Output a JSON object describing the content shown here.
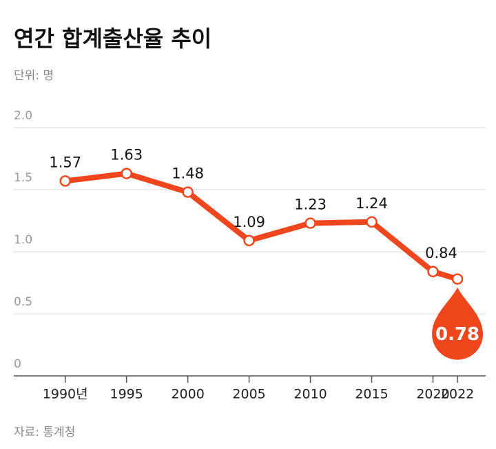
{
  "chart_data": {
    "type": "line",
    "title": "연간 합계출산율 추이",
    "subtitle": "단위: 명",
    "source": "자료: 통계청",
    "x": [
      1990,
      1995,
      2000,
      2005,
      2010,
      2015,
      2020,
      2022
    ],
    "values": [
      1.57,
      1.63,
      1.48,
      1.09,
      1.23,
      1.24,
      0.84,
      0.78
    ],
    "color": "#f0461e",
    "xlim": [
      1985.8,
      2024.3
    ],
    "xticks": [
      {
        "value": 1990,
        "label": "1990년"
      },
      1995,
      2000,
      2005,
      2010,
      2015,
      2020,
      2022
    ],
    "ylim": [
      0,
      2
    ],
    "yticks": [
      0,
      {
        "value": 0.5,
        "label": "0.5"
      },
      {
        "value": 1,
        "label": "1.0"
      },
      {
        "value": 1.5,
        "label": "1.5"
      },
      {
        "value": 2,
        "label": "2.0"
      }
    ],
    "grid": true
  }
}
